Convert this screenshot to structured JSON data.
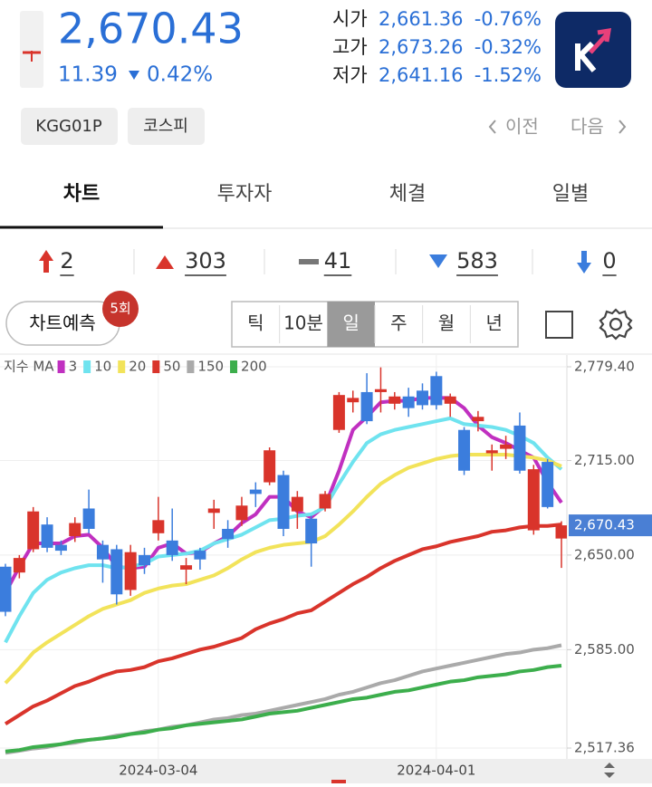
{
  "header": {
    "price": "2,670.43",
    "change": "11.39",
    "change_pct": "0.42%",
    "ohlc": [
      {
        "label": "시가",
        "value": "2,661.36",
        "pct": "-0.76%"
      },
      {
        "label": "고가",
        "value": "2,673.26",
        "pct": "-0.32%"
      },
      {
        "label": "저가",
        "value": "2,641.16",
        "pct": "-1.52%"
      }
    ],
    "tags": [
      "KGG01P",
      "코스피"
    ],
    "prev": "이전",
    "next": "다음"
  },
  "tabs": [
    "차트",
    "투자자",
    "체결",
    "일별"
  ],
  "counts": [
    2,
    303,
    41,
    583,
    0
  ],
  "toolbar": {
    "predict": "차트예측",
    "badge": "5회",
    "periods": [
      "틱",
      "10분",
      "일",
      "주",
      "월",
      "년"
    ]
  },
  "chart_data": {
    "type": "candlestick",
    "legend_title": "지수 MA",
    "categories": [
      null,
      null,
      null,
      null,
      null,
      null,
      null,
      null,
      null,
      null,
      null,
      "2024-03-04",
      null,
      null,
      null,
      null,
      null,
      null,
      null,
      null,
      null,
      null,
      null,
      null,
      null,
      null,
      null,
      null,
      null,
      null,
      null,
      "2024-04-01",
      null,
      null,
      null,
      null,
      null,
      null,
      null,
      null,
      null
    ],
    "candles": {
      "open": [
        2642,
        2638,
        2654,
        2671,
        2657,
        2663,
        2682,
        2657,
        2654,
        2626,
        2650,
        2665,
        2660,
        2640,
        2653,
        2679,
        2668,
        2674,
        2695,
        2700,
        2705,
        2680,
        2675,
        2682,
        2736,
        2755,
        2762,
        2762,
        2754,
        2759,
        2763,
        2773,
        2754,
        2736,
        2742,
        2720,
        2723,
        2739,
        2667,
        2714,
        2661.36
      ],
      "high": [
        2644,
        2650,
        2683,
        2676,
        2660,
        2676,
        2695,
        2660,
        2657,
        2657,
        2655,
        2690,
        2682,
        2648,
        2655,
        2688,
        2674,
        2690,
        2700,
        2724,
        2708,
        2694,
        2677,
        2694,
        2762,
        2763,
        2775,
        2779,
        2762,
        2765,
        2768,
        2776,
        2761,
        2738,
        2749,
        2726,
        2732,
        2748,
        2712,
        2716,
        2673.26
      ],
      "low": [
        2608,
        2634,
        2652,
        2652,
        2650,
        2659,
        2665,
        2631,
        2616,
        2622,
        2637,
        2660,
        2646,
        2630,
        2640,
        2668,
        2655,
        2670,
        2683,
        2698,
        2663,
        2668,
        2642,
        2680,
        2734,
        2748,
        2740,
        2748,
        2750,
        2745,
        2750,
        2750,
        2745,
        2705,
        2735,
        2708,
        2716,
        2706,
        2664,
        2682,
        2641.16
      ],
      "close": [
        2611,
        2648,
        2680,
        2655,
        2653,
        2672,
        2668,
        2647,
        2623,
        2652,
        2643,
        2674,
        2650,
        2643,
        2647,
        2682,
        2661,
        2684,
        2692,
        2722,
        2668,
        2690,
        2658,
        2692,
        2760,
        2758,
        2742,
        2764,
        2759,
        2751,
        2753,
        2753,
        2759,
        2708,
        2745,
        2722,
        2726,
        2708,
        2709,
        2683,
        2670.43
      ],
      "up_color": "#d9342b",
      "down_color": "#3b7ddd"
    },
    "series": [
      {
        "name": "3",
        "color": "#c030c0",
        "values": [
          2624,
          2642,
          2658,
          2658,
          2658,
          2663,
          2664,
          2655,
          2642,
          2641,
          2642,
          2655,
          2658,
          2651,
          2652,
          2658,
          2663,
          2672,
          2678,
          2690,
          2690,
          2680,
          2676,
          2684,
          2708,
          2736,
          2745,
          2755,
          2756,
          2756,
          2758,
          2758,
          2758,
          2751,
          2739,
          2731,
          2727,
          2722,
          2717,
          2700,
          2686
        ]
      },
      {
        "name": "10",
        "color": "#6fe3ef",
        "values": [
          2590,
          2608,
          2624,
          2633,
          2638,
          2641,
          2643,
          2643,
          2641,
          2642,
          2644,
          2649,
          2650,
          2651,
          2653,
          2658,
          2661,
          2664,
          2669,
          2674,
          2675,
          2677,
          2678,
          2683,
          2699,
          2714,
          2727,
          2733,
          2736,
          2738,
          2740,
          2742,
          2744,
          2740,
          2739,
          2738,
          2736,
          2732,
          2727,
          2717,
          2709
        ]
      },
      {
        "name": "20",
        "color": "#f2e35a",
        "values": [
          2562,
          2572,
          2583,
          2590,
          2596,
          2602,
          2608,
          2613,
          2616,
          2619,
          2624,
          2627,
          2629,
          2630,
          2633,
          2636,
          2641,
          2647,
          2652,
          2655,
          2657,
          2658,
          2659,
          2663,
          2671,
          2680,
          2690,
          2699,
          2705,
          2710,
          2713,
          2716,
          2718,
          2719,
          2719,
          2719,
          2719,
          2718,
          2717,
          2715,
          2711
        ]
      },
      {
        "name": "50",
        "color": "#d9342b",
        "values": [
          2534,
          2540,
          2546,
          2550,
          2555,
          2560,
          2563,
          2567,
          2570,
          2571,
          2573,
          2577,
          2579,
          2582,
          2585,
          2587,
          2590,
          2593,
          2599,
          2603,
          2606,
          2610,
          2612,
          2618,
          2624,
          2630,
          2635,
          2641,
          2646,
          2650,
          2654,
          2656,
          2659,
          2661,
          2663,
          2666,
          2667,
          2669,
          2670,
          2670,
          2671
        ]
      },
      {
        "name": "150",
        "color": "#aaaaaa",
        "values": [
          2514,
          2515.5,
          2517,
          2518,
          2520,
          2521,
          2523,
          2524,
          2526,
          2527,
          2529,
          2530,
          2532,
          2533,
          2535,
          2537,
          2538,
          2540,
          2541,
          2543,
          2545,
          2547,
          2549,
          2551,
          2554,
          2556,
          2559,
          2562,
          2564,
          2567,
          2570,
          2572,
          2574,
          2576,
          2578,
          2580,
          2582,
          2583,
          2585,
          2586,
          2588
        ]
      },
      {
        "name": "200",
        "color": "#3cae4c",
        "values": [
          2515,
          2516,
          2518,
          2519,
          2520,
          2522,
          2523,
          2524,
          2525,
          2527,
          2528,
          2530,
          2531,
          2533,
          2534,
          2535,
          2536,
          2537,
          2539,
          2541,
          2542,
          2543,
          2545,
          2547,
          2549,
          2551,
          2552,
          2554,
          2556,
          2557,
          2559,
          2561,
          2563,
          2564,
          2566,
          2567,
          2568,
          2570,
          2571,
          2573,
          2574
        ]
      }
    ],
    "ylim": [
      2517.36,
      2779.4
    ],
    "yticks": [
      {
        "value": 2517.36,
        "label": "2,517.36"
      },
      {
        "value": 2585,
        "label": "2,585.00"
      },
      {
        "value": 2650,
        "label": "2,650.00"
      },
      {
        "value": 2715,
        "label": "2,715.00"
      },
      {
        "value": 2779.4,
        "label": "2,779.40"
      }
    ],
    "current": {
      "value": 2670.43,
      "label": "2,670.43",
      "color": "#4a7fd4"
    },
    "grid": true
  }
}
